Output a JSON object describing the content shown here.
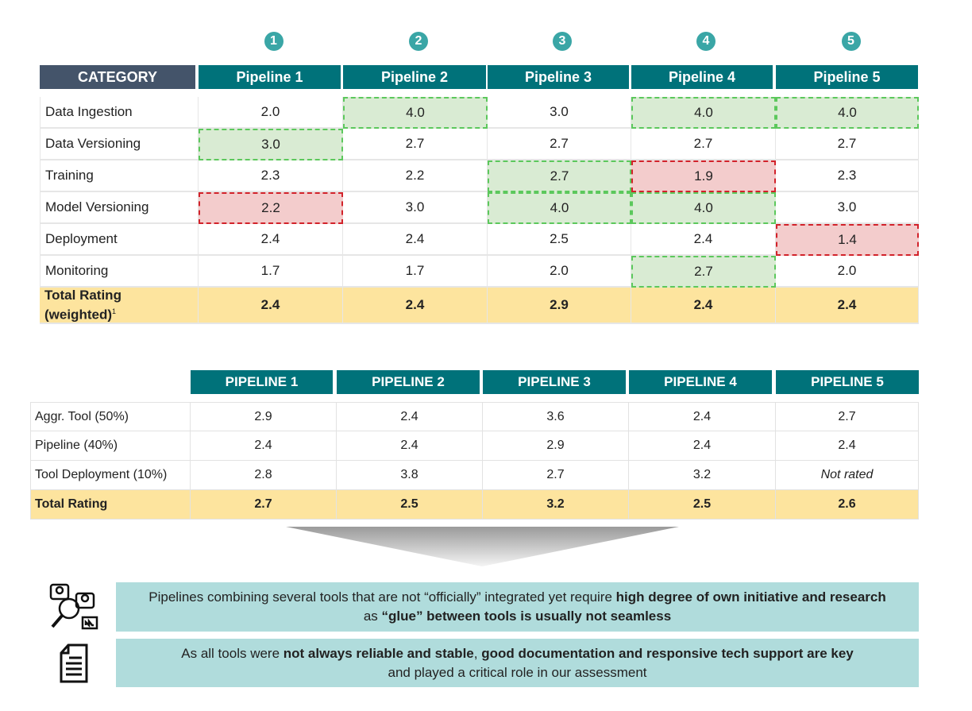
{
  "top_table": {
    "category_header": "CATEGORY",
    "pipeline_numbers": [
      "1",
      "2",
      "3",
      "4",
      "5"
    ],
    "columns": [
      "Pipeline 1",
      "Pipeline 2",
      "Pipeline 3",
      "Pipeline 4",
      "Pipeline 5"
    ],
    "rows": [
      {
        "label": "Data Ingestion",
        "values": [
          "2.0",
          "4.0",
          "3.0",
          "4.0",
          "4.0"
        ],
        "highlight": [
          "",
          "good",
          "",
          "good",
          "good"
        ]
      },
      {
        "label": "Data Versioning",
        "values": [
          "3.0",
          "2.7",
          "2.7",
          "2.7",
          "2.7"
        ],
        "highlight": [
          "good",
          "",
          "",
          "",
          ""
        ]
      },
      {
        "label": "Training",
        "values": [
          "2.3",
          "2.2",
          "2.7",
          "1.9",
          "2.3"
        ],
        "highlight": [
          "",
          "",
          "good",
          "bad",
          ""
        ]
      },
      {
        "label": "Model Versioning",
        "values": [
          "2.2",
          "3.0",
          "4.0",
          "4.0",
          "3.0"
        ],
        "highlight": [
          "bad",
          "",
          "good",
          "good",
          ""
        ]
      },
      {
        "label": "Deployment",
        "values": [
          "2.4",
          "2.4",
          "2.5",
          "2.4",
          "1.4"
        ],
        "highlight": [
          "",
          "",
          "",
          "",
          "bad"
        ]
      },
      {
        "label": "Monitoring",
        "values": [
          "1.7",
          "1.7",
          "2.0",
          "2.7",
          "2.0"
        ],
        "highlight": [
          "",
          "",
          "",
          "good",
          ""
        ]
      }
    ],
    "total": {
      "label": "Total Rating",
      "label2": "(weighted)",
      "footnote": "1",
      "values": [
        "2.4",
        "2.4",
        "2.9",
        "2.4",
        "2.4"
      ]
    }
  },
  "bottom_table": {
    "columns": [
      "PIPELINE 1",
      "PIPELINE 2",
      "PIPELINE 3",
      "PIPELINE 4",
      "PIPELINE 5"
    ],
    "rows": [
      {
        "label": "Aggr. Tool (50%)",
        "values": [
          "2.9",
          "2.4",
          "3.6",
          "2.4",
          "2.7"
        ]
      },
      {
        "label": "Pipeline (40%)",
        "values": [
          "2.4",
          "2.4",
          "2.9",
          "2.4",
          "2.4"
        ]
      },
      {
        "label": "Tool Deployment (10%)",
        "values": [
          "2.8",
          "3.8",
          "2.7",
          "3.2",
          "Not rated"
        ]
      }
    ],
    "total": {
      "label": "Total Rating",
      "values": [
        "2.7",
        "2.5",
        "3.2",
        "2.5",
        "2.6"
      ]
    }
  },
  "insights": [
    {
      "icon": "research-team-icon",
      "l1a": "Pipelines combining several tools that are not “officially” integrated yet require ",
      "l1b": "high degree of own initiative and research",
      "l2a": "as ",
      "l2b": "“glue” between tools is usually not seamless",
      "l2c": ""
    },
    {
      "icon": "document-icon",
      "l1a": "As all tools were ",
      "l1b": "not always reliable and stable",
      "l1c": ", ",
      "l1d": "good documentation and responsive tech support are key",
      "l2a": "and played a critical role in our assessment"
    }
  ],
  "colors": {
    "header": "#00727a",
    "category_header": "#44546a",
    "total": "#fde49e",
    "good": "#d9ebd3",
    "bad": "#f3cccc",
    "insight_bg": "#b0dcdc"
  }
}
